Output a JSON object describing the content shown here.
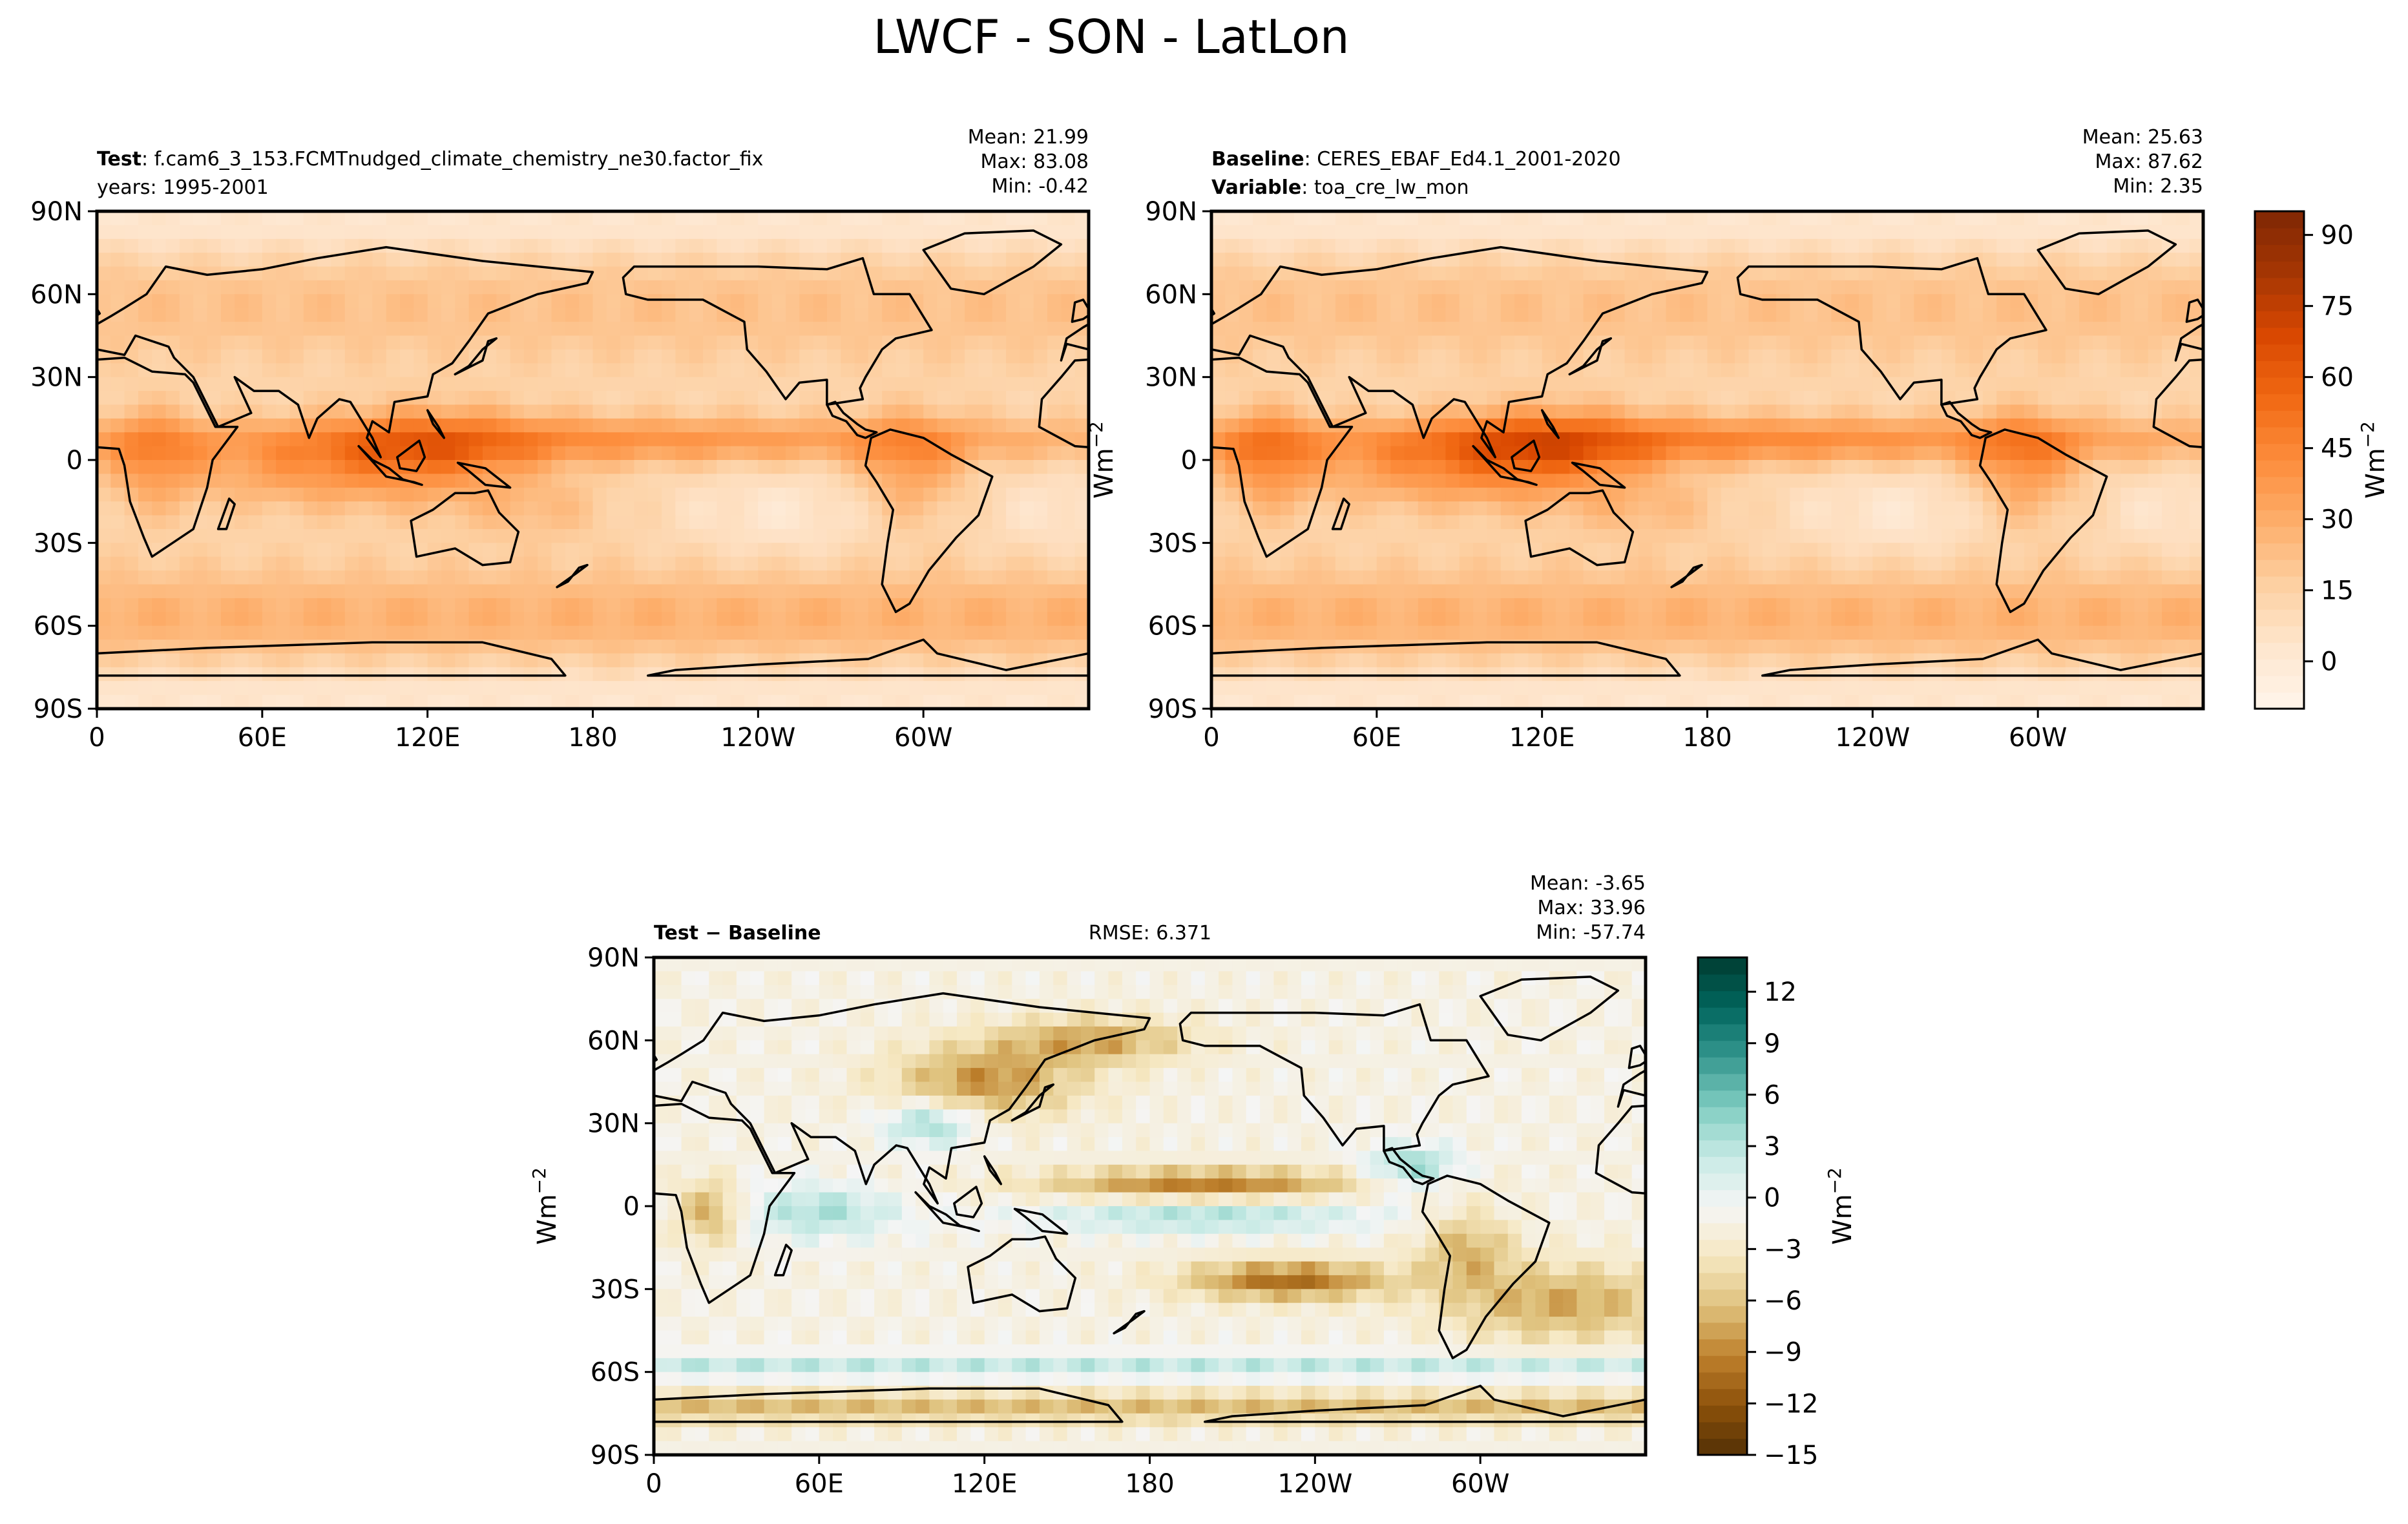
{
  "figure_title": "LWCF - SON - LatLon",
  "colors": {
    "oranges": [
      "#fff5eb",
      "#fee6ce",
      "#fdd0a2",
      "#fdae6b",
      "#fd8d3c",
      "#f16913",
      "#d94801",
      "#a63603",
      "#7f2704"
    ],
    "brbg": [
      "#543005",
      "#8c510a",
      "#bf812d",
      "#dfc27d",
      "#f6e8c3",
      "#f5f5f5",
      "#c7eae5",
      "#80cdc1",
      "#35978f",
      "#01665e",
      "#003c30"
    ],
    "coast": "#000000",
    "frame": "#000000"
  },
  "chart_data": [
    {
      "type": "heatmap",
      "id": "test",
      "label_bold": "Test",
      "label_text": ": f.cam6_3_153.FCMTnudged_climate_chemistry_ne30.factor_fix",
      "line2": "years: 1995-2001",
      "stats": [
        "Mean: 21.99",
        "Max: 83.08",
        "Min: -0.42"
      ],
      "x_ticks": [
        "0",
        "60E",
        "120E",
        "180",
        "120W",
        "60W"
      ],
      "y_ticks": [
        "90N",
        "60N",
        "30N",
        "0",
        "30S",
        "60S",
        "90S"
      ],
      "lon_range": [
        0,
        360
      ],
      "lat_range": [
        -90,
        90
      ],
      "mean": 21.99,
      "max": 83.08,
      "min": -0.42,
      "field_params": {
        "kind": "lwcf",
        "ampItcz": 1.0
      }
    },
    {
      "type": "heatmap",
      "id": "baseline",
      "label_bold": "Baseline",
      "label_text": ": CERES_EBAF_Ed4.1_2001-2020",
      "label2_bold": "Variable",
      "label2_text": ": toa_cre_lw_mon",
      "stats": [
        "Mean: 25.63",
        "Max: 87.62",
        "Min:  2.35"
      ],
      "x_ticks": [
        "0",
        "60E",
        "120E",
        "180",
        "120W",
        "60W"
      ],
      "y_ticks": [
        "90N",
        "60N",
        "30N",
        "0",
        "30S",
        "60S",
        "90S"
      ],
      "lon_range": [
        0,
        360
      ],
      "lat_range": [
        -90,
        90
      ],
      "mean": 25.63,
      "max": 87.62,
      "min": 2.35,
      "field_params": {
        "kind": "lwcf",
        "ampItcz": 1.15
      },
      "colorbar": {
        "ticks": [
          "90",
          "75",
          "60",
          "45",
          "30",
          "15",
          "0"
        ],
        "tick_values": [
          90,
          75,
          60,
          45,
          30,
          15,
          0
        ],
        "range": [
          -10,
          95
        ],
        "label": "Wm",
        "label_exp": "−2"
      },
      "ylabel": "Wm",
      "ylabel_exp": "−2"
    },
    {
      "type": "heatmap",
      "id": "diff",
      "label_bold": "Test − Baseline",
      "rmse": "RMSE: 6.371",
      "stats": [
        "Mean: -3.65",
        "Max: 33.96",
        "Min: -57.74"
      ],
      "x_ticks": [
        "0",
        "60E",
        "120E",
        "180",
        "120W",
        "60W"
      ],
      "y_ticks": [
        "90N",
        "60N",
        "30N",
        "0",
        "30S",
        "60S",
        "90S"
      ],
      "lon_range": [
        0,
        360
      ],
      "lat_range": [
        -90,
        90
      ],
      "mean": -3.65,
      "max": 33.96,
      "min": -57.74,
      "field_params": {
        "kind": "diff"
      },
      "colorbar": {
        "ticks": [
          "12",
          "9",
          "6",
          "3",
          "0",
          "−3",
          "−6",
          "−9",
          "−12",
          "−15"
        ],
        "tick_values": [
          12,
          9,
          6,
          3,
          0,
          -3,
          -6,
          -9,
          -12,
          -15
        ],
        "range": [
          -15,
          14
        ],
        "label": "Wm",
        "label_exp": "−2"
      },
      "ylabel": "Wm",
      "ylabel_exp": "−2"
    }
  ]
}
